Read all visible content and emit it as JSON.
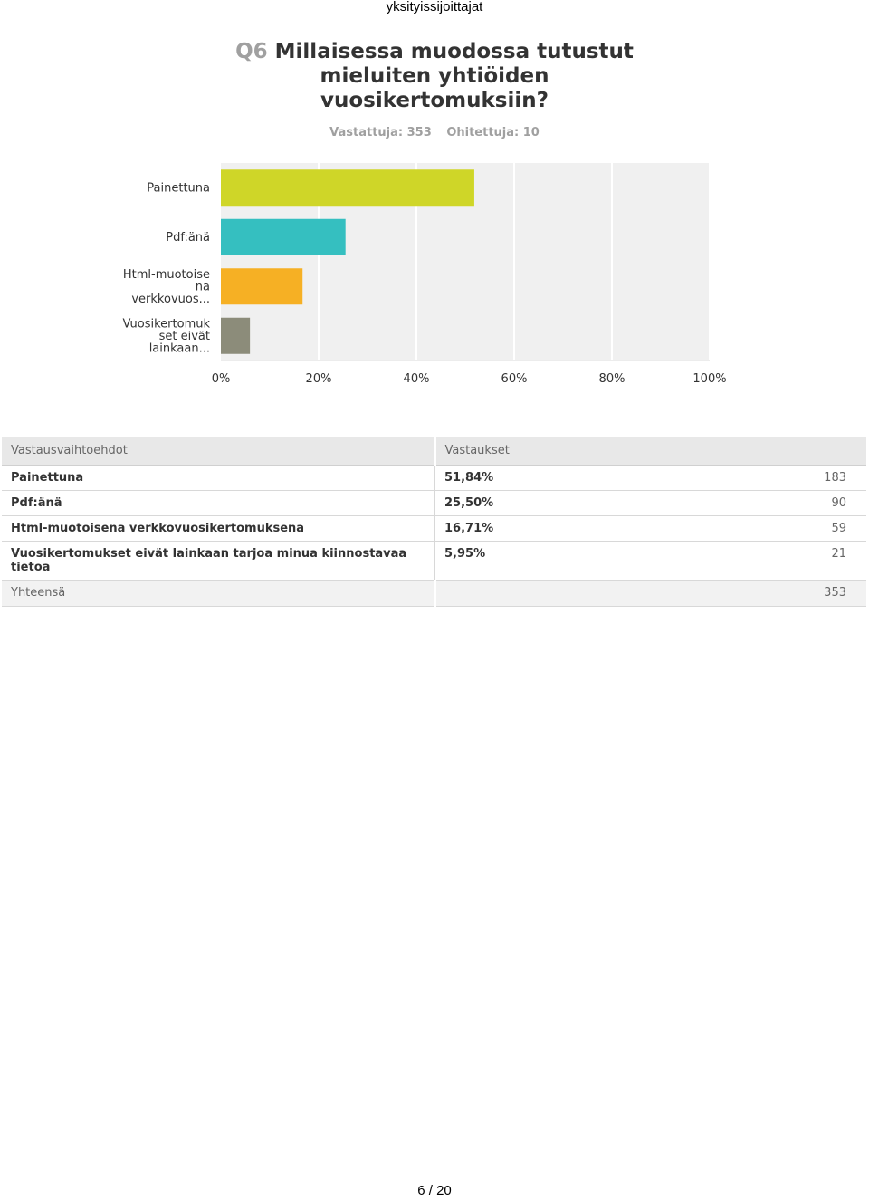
{
  "header": {
    "text": "yksityissijoittajat"
  },
  "question": {
    "number": "Q6",
    "title": "Millaisessa muodossa tutustut mieluiten yhtiöiden vuosikertomuksiin?",
    "answered": "Vastattuja: 353",
    "skipped": "Ohitettuja: 10"
  },
  "chart_data": {
    "type": "bar",
    "orientation": "horizontal",
    "categories": [
      "Painettuna",
      "Pdf:änä",
      "Html-muotoise na verkkovuos...",
      "Vuosikertomuk set eivät lainkaan..."
    ],
    "values": [
      51.84,
      25.5,
      16.71,
      5.95
    ],
    "colors": [
      "#cfd628",
      "#35bfc0",
      "#f6b024",
      "#8c8c7a"
    ],
    "xlim": [
      0,
      100
    ],
    "ticks": [
      "0%",
      "20%",
      "40%",
      "60%",
      "80%",
      "100%"
    ],
    "grid": true
  },
  "table": {
    "headers": [
      "Vastausvaihtoehdot",
      "Vastaukset"
    ],
    "rows": [
      {
        "option": "Painettuna",
        "percent": "51,84%",
        "count": "183"
      },
      {
        "option": "Pdf:änä",
        "percent": "25,50%",
        "count": "90"
      },
      {
        "option": "Html-muotoisena verkkovuosikertomuksena",
        "percent": "16,71%",
        "count": "59"
      },
      {
        "option": "Vuosikertomukset eivät lainkaan tarjoa minua kiinnostavaa tietoa",
        "percent": "5,95%",
        "count": "21"
      }
    ],
    "total": {
      "label": "Yhteensä",
      "count": "353"
    }
  },
  "footer": {
    "page": "6 / 20"
  }
}
